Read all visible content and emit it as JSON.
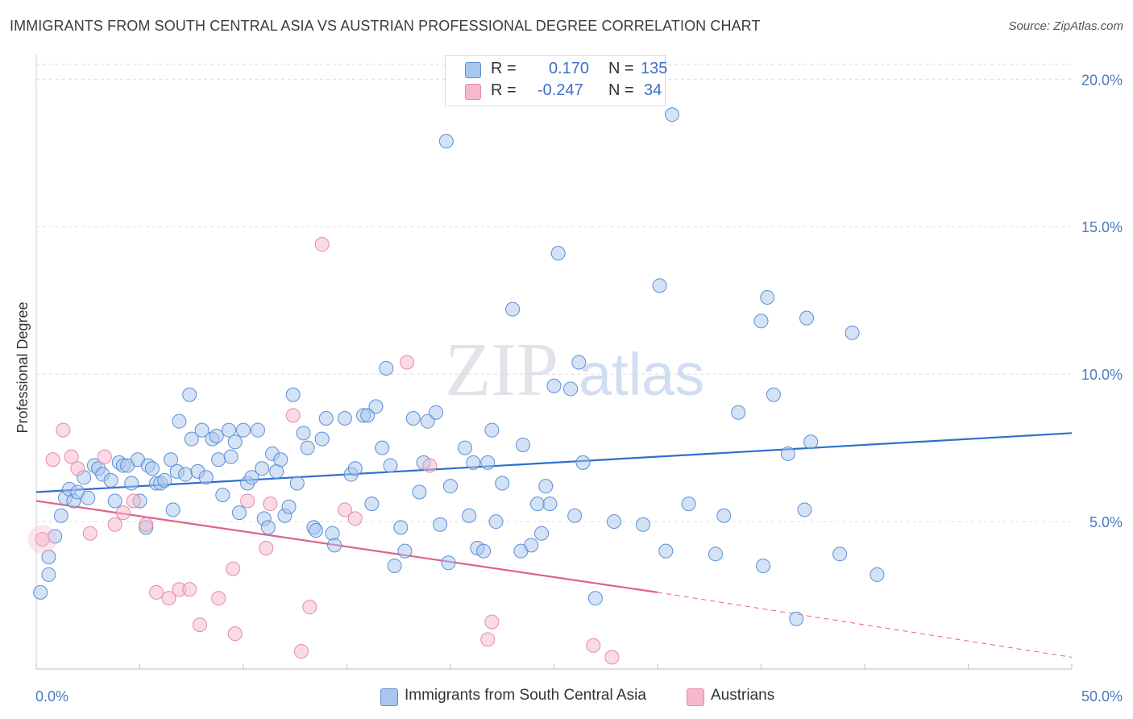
{
  "header": {
    "title": "IMMIGRANTS FROM SOUTH CENTRAL ASIA VS AUSTRIAN PROFESSIONAL DEGREE CORRELATION CHART",
    "source": "Source: ZipAtlas.com"
  },
  "watermark": {
    "zip": "ZIP",
    "atlas": "atlas"
  },
  "legend": {
    "rows": [
      {
        "r_label": "R =",
        "r_value": "0.170",
        "n_label": "N =",
        "n_value": "135",
        "color": "#a9c6ee"
      },
      {
        "r_label": "R =",
        "r_value": "-0.247",
        "n_label": "N =",
        "n_value": "34",
        "color": "#f6b8cb"
      }
    ]
  },
  "bottom_legend": {
    "items": [
      {
        "label": "Immigrants from South Central Asia",
        "color": "#a9c6ee"
      },
      {
        "label": "Austrians",
        "color": "#f6b8cb"
      }
    ]
  },
  "chart_data": {
    "type": "scatter",
    "title": "IMMIGRANTS FROM SOUTH CENTRAL ASIA VS AUSTRIAN PROFESSIONAL DEGREE CORRELATION CHART",
    "xlabel": "",
    "ylabel": "Professional Degree",
    "xlim": [
      0,
      50
    ],
    "ylim": [
      0,
      20.5
    ],
    "x_tick_labels": [
      "0.0%",
      "50.0%"
    ],
    "y_ticks": [
      5,
      10,
      15,
      20
    ],
    "y_tick_labels": [
      "5.0%",
      "10.0%",
      "15.0%",
      "20.0%"
    ],
    "grid": true,
    "legend_position": "top-center",
    "series": [
      {
        "name": "Immigrants from South Central Asia",
        "color": "#5b8fd6",
        "fill": "#a9c6ee",
        "trend": {
          "x": [
            0,
            50
          ],
          "y": [
            6.0,
            8.0
          ],
          "color": "#2f6fcc"
        },
        "points": [
          [
            0.2,
            2.6
          ],
          [
            0.6,
            3.2
          ],
          [
            0.6,
            3.8
          ],
          [
            0.9,
            4.5
          ],
          [
            1.2,
            5.2
          ],
          [
            1.4,
            5.8
          ],
          [
            1.6,
            6.1
          ],
          [
            1.8,
            5.7
          ],
          [
            2.0,
            6.0
          ],
          [
            2.3,
            6.5
          ],
          [
            2.5,
            5.8
          ],
          [
            2.8,
            6.9
          ],
          [
            3.0,
            6.8
          ],
          [
            3.2,
            6.6
          ],
          [
            3.6,
            6.4
          ],
          [
            3.8,
            5.7
          ],
          [
            4.0,
            7.0
          ],
          [
            4.2,
            6.9
          ],
          [
            4.4,
            6.9
          ],
          [
            4.6,
            6.3
          ],
          [
            4.9,
            7.1
          ],
          [
            5.0,
            5.7
          ],
          [
            5.3,
            4.8
          ],
          [
            5.4,
            6.9
          ],
          [
            5.6,
            6.8
          ],
          [
            5.8,
            6.3
          ],
          [
            6.0,
            6.3
          ],
          [
            6.2,
            6.4
          ],
          [
            6.5,
            7.1
          ],
          [
            6.6,
            5.4
          ],
          [
            6.8,
            6.7
          ],
          [
            6.9,
            8.4
          ],
          [
            7.2,
            6.6
          ],
          [
            7.4,
            9.3
          ],
          [
            7.5,
            7.8
          ],
          [
            7.8,
            6.7
          ],
          [
            8.0,
            8.1
          ],
          [
            8.2,
            6.5
          ],
          [
            8.5,
            7.8
          ],
          [
            8.7,
            7.9
          ],
          [
            8.8,
            7.1
          ],
          [
            9.0,
            5.9
          ],
          [
            9.3,
            8.1
          ],
          [
            9.4,
            7.2
          ],
          [
            9.6,
            7.7
          ],
          [
            9.8,
            5.3
          ],
          [
            10.0,
            8.1
          ],
          [
            10.2,
            6.3
          ],
          [
            10.4,
            6.5
          ],
          [
            10.7,
            8.1
          ],
          [
            10.9,
            6.8
          ],
          [
            11.0,
            5.1
          ],
          [
            11.2,
            4.8
          ],
          [
            11.4,
            7.3
          ],
          [
            11.6,
            6.7
          ],
          [
            11.8,
            7.1
          ],
          [
            12.0,
            5.2
          ],
          [
            12.2,
            5.5
          ],
          [
            12.4,
            9.3
          ],
          [
            12.6,
            6.3
          ],
          [
            12.9,
            8.0
          ],
          [
            13.1,
            7.5
          ],
          [
            13.4,
            4.8
          ],
          [
            13.5,
            4.7
          ],
          [
            13.8,
            7.8
          ],
          [
            14.0,
            8.5
          ],
          [
            14.3,
            4.6
          ],
          [
            14.4,
            4.2
          ],
          [
            14.9,
            8.5
          ],
          [
            15.2,
            6.6
          ],
          [
            15.4,
            6.8
          ],
          [
            15.8,
            8.6
          ],
          [
            16.0,
            8.6
          ],
          [
            16.2,
            5.6
          ],
          [
            16.4,
            8.9
          ],
          [
            16.7,
            7.5
          ],
          [
            16.9,
            10.2
          ],
          [
            17.1,
            6.9
          ],
          [
            17.3,
            3.5
          ],
          [
            17.6,
            4.8
          ],
          [
            17.8,
            4.0
          ],
          [
            18.5,
            6.0
          ],
          [
            18.7,
            7.0
          ],
          [
            18.9,
            8.4
          ],
          [
            19.3,
            8.7
          ],
          [
            19.5,
            4.9
          ],
          [
            19.8,
            17.9
          ],
          [
            19.9,
            3.6
          ],
          [
            20.0,
            6.2
          ],
          [
            20.7,
            7.5
          ],
          [
            20.9,
            5.2
          ],
          [
            21.1,
            7.0
          ],
          [
            21.3,
            4.1
          ],
          [
            21.6,
            4.0
          ],
          [
            21.8,
            7.0
          ],
          [
            22.0,
            8.1
          ],
          [
            22.2,
            5.0
          ],
          [
            22.5,
            6.3
          ],
          [
            23.0,
            12.2
          ],
          [
            23.4,
            4.0
          ],
          [
            23.5,
            7.6
          ],
          [
            23.9,
            4.2
          ],
          [
            24.2,
            5.6
          ],
          [
            24.4,
            4.6
          ],
          [
            24.6,
            6.2
          ],
          [
            24.8,
            5.6
          ],
          [
            25.0,
            9.6
          ],
          [
            25.2,
            14.1
          ],
          [
            25.8,
            9.5
          ],
          [
            26.0,
            5.2
          ],
          [
            26.2,
            10.4
          ],
          [
            26.4,
            7.0
          ],
          [
            27.0,
            2.4
          ],
          [
            27.9,
            5.0
          ],
          [
            29.3,
            4.9
          ],
          [
            30.1,
            13.0
          ],
          [
            30.4,
            4.0
          ],
          [
            31.5,
            5.6
          ],
          [
            32.8,
            3.9
          ],
          [
            33.2,
            5.2
          ],
          [
            33.9,
            8.7
          ],
          [
            35.0,
            11.8
          ],
          [
            35.1,
            3.5
          ],
          [
            35.3,
            12.6
          ],
          [
            35.6,
            9.3
          ],
          [
            36.3,
            7.3
          ],
          [
            36.7,
            1.7
          ],
          [
            37.2,
            11.9
          ],
          [
            37.4,
            7.7
          ],
          [
            37.1,
            5.4
          ],
          [
            38.8,
            3.9
          ],
          [
            39.4,
            11.4
          ],
          [
            40.6,
            3.2
          ],
          [
            30.7,
            18.8
          ],
          [
            18.2,
            8.5
          ]
        ]
      },
      {
        "name": "Austrians",
        "color": "#e58aa6",
        "fill": "#f6b8cb",
        "trend": {
          "x": [
            0,
            30
          ],
          "y": [
            5.7,
            2.6
          ],
          "color": "#e0628a"
        },
        "trend_extension": {
          "x": [
            30,
            50
          ],
          "y": [
            2.6,
            0.4
          ]
        },
        "points": [
          [
            0.3,
            4.4
          ],
          [
            0.8,
            7.1
          ],
          [
            1.3,
            8.1
          ],
          [
            1.7,
            7.2
          ],
          [
            2.0,
            6.8
          ],
          [
            2.6,
            4.6
          ],
          [
            3.3,
            7.2
          ],
          [
            3.8,
            4.9
          ],
          [
            4.2,
            5.3
          ],
          [
            4.7,
            5.7
          ],
          [
            5.3,
            4.9
          ],
          [
            5.8,
            2.6
          ],
          [
            6.4,
            2.4
          ],
          [
            6.9,
            2.7
          ],
          [
            7.4,
            2.7
          ],
          [
            7.9,
            1.5
          ],
          [
            8.8,
            2.4
          ],
          [
            9.5,
            3.4
          ],
          [
            9.6,
            1.2
          ],
          [
            10.2,
            5.7
          ],
          [
            11.1,
            4.1
          ],
          [
            11.3,
            5.6
          ],
          [
            12.4,
            8.6
          ],
          [
            12.8,
            0.6
          ],
          [
            13.2,
            2.1
          ],
          [
            13.8,
            14.4
          ],
          [
            14.9,
            5.4
          ],
          [
            15.4,
            5.1
          ],
          [
            17.9,
            10.4
          ],
          [
            19.0,
            6.9
          ],
          [
            21.8,
            1.0
          ],
          [
            22.0,
            1.6
          ],
          [
            26.9,
            0.8
          ],
          [
            27.8,
            0.4
          ]
        ]
      }
    ]
  }
}
